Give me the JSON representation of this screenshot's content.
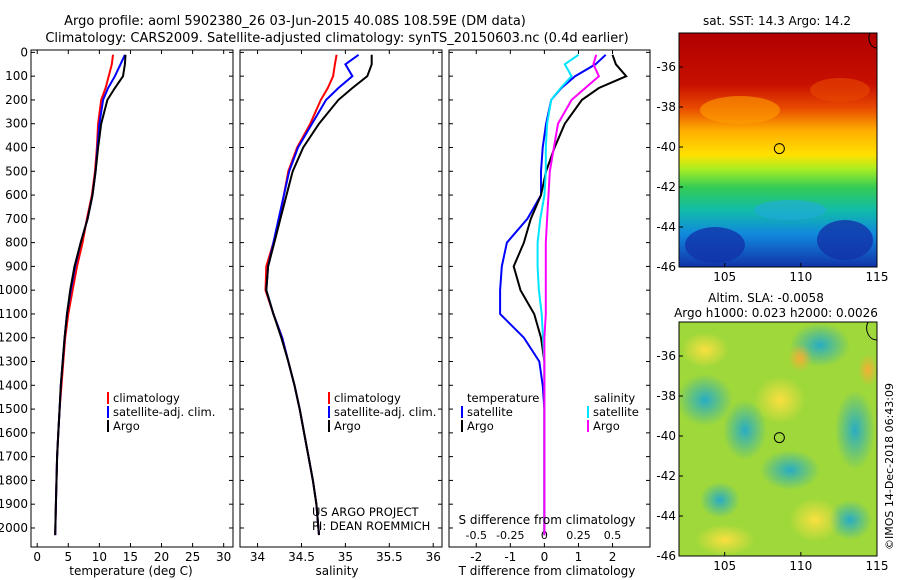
{
  "header": {
    "title_line1": "Argo profile: aoml 5902380_26 03-Jun-2015 40.08S 108.59E (DM data)",
    "title_line2": "Climatology: CARS2009. Satellite-adjusted climatology: synTS_20150603.nc (0.4d earlier)"
  },
  "colors": {
    "climatology": "#ff0000",
    "satellite": "#0000ff",
    "argo": "#000000",
    "sat_salinity": "#00e5ff",
    "argo_salinity_diff": "#ff00ff"
  },
  "depth_axis": {
    "ticks": [
      0,
      100,
      200,
      300,
      400,
      500,
      600,
      700,
      800,
      900,
      1000,
      1100,
      1200,
      1300,
      1400,
      1500,
      1600,
      1700,
      1800,
      1900,
      2000
    ],
    "range": [
      -10,
      2080
    ]
  },
  "chart_data": [
    {
      "type": "line",
      "xlabel": "temperature (deg C)",
      "xlim": [
        -1,
        31.5
      ],
      "xticks": [
        0,
        5,
        10,
        15,
        20,
        25,
        30
      ],
      "legend": [
        "climatology",
        "satellite-adj. clim.",
        "Argo"
      ],
      "series": [
        {
          "name": "climatology",
          "color": "#ff0000",
          "x": [
            12.2,
            12.0,
            11.5,
            11.0,
            10.3,
            9.8,
            9.6,
            9.3,
            8.8,
            8.0,
            7.3,
            6.4,
            5.7,
            5.0,
            4.5,
            4.2,
            3.9,
            3.6,
            3.4,
            3.2,
            3.1,
            3.0,
            2.9
          ],
          "y": [
            10,
            50,
            100,
            150,
            200,
            300,
            400,
            500,
            600,
            700,
            800,
            900,
            1000,
            1100,
            1200,
            1300,
            1400,
            1500,
            1600,
            1700,
            1800,
            1900,
            2030
          ]
        },
        {
          "name": "satellite-adj. clim.",
          "color": "#0000ff",
          "x": [
            14.1,
            13.4,
            12.5,
            11.4,
            10.6,
            10.0,
            9.7,
            9.4,
            8.9,
            8.1,
            7.0,
            6.1,
            5.4,
            4.8,
            4.4,
            4.1,
            3.8,
            3.6,
            3.4,
            3.2,
            3.1,
            3.0,
            2.9
          ],
          "y": [
            10,
            50,
            100,
            150,
            200,
            300,
            400,
            500,
            600,
            700,
            800,
            900,
            1000,
            1100,
            1200,
            1300,
            1400,
            1500,
            1600,
            1700,
            1800,
            1900,
            2030
          ]
        },
        {
          "name": "Argo",
          "color": "#000000",
          "x": [
            14.2,
            14.1,
            13.8,
            12.5,
            11.3,
            10.3,
            9.8,
            9.4,
            8.9,
            8.1,
            7.0,
            6.0,
            5.3,
            4.8,
            4.4,
            4.1,
            3.8,
            3.6,
            3.4,
            3.2,
            3.1,
            3.0,
            2.9
          ],
          "y": [
            10,
            50,
            100,
            150,
            200,
            300,
            400,
            500,
            600,
            700,
            800,
            900,
            1000,
            1100,
            1200,
            1300,
            1400,
            1500,
            1600,
            1700,
            1800,
            1900,
            2030
          ]
        }
      ]
    },
    {
      "type": "line",
      "xlabel": "salinity",
      "xlim": [
        33.8,
        36.1
      ],
      "xticks": [
        34,
        34.5,
        35,
        35.5,
        36
      ],
      "xticklabels": [
        "34",
        "34.5",
        "35",
        "35.5",
        "36"
      ],
      "legend": [
        "climatology",
        "satellite-adj. clim.",
        "Argo"
      ],
      "series": [
        {
          "name": "climatology",
          "color": "#ff0000",
          "x": [
            34.9,
            34.88,
            34.86,
            34.8,
            34.72,
            34.6,
            34.45,
            34.35,
            34.3,
            34.25,
            34.18,
            34.1,
            34.09,
            34.18,
            34.28,
            34.35,
            34.42,
            34.48,
            34.53,
            34.58,
            34.63,
            34.67,
            34.7
          ],
          "y": [
            10,
            50,
            100,
            150,
            200,
            300,
            400,
            500,
            600,
            700,
            800,
            900,
            1000,
            1100,
            1200,
            1300,
            1400,
            1500,
            1600,
            1700,
            1800,
            1900,
            2030
          ]
        },
        {
          "name": "satellite-adj. clim.",
          "color": "#0000ff",
          "x": [
            35.15,
            35.0,
            35.08,
            34.92,
            34.78,
            34.62,
            34.46,
            34.36,
            34.3,
            34.24,
            34.18,
            34.12,
            34.1,
            34.18,
            34.28,
            34.35,
            34.42,
            34.48,
            34.53,
            34.58,
            34.63,
            34.67,
            34.7
          ],
          "y": [
            10,
            50,
            100,
            150,
            200,
            300,
            400,
            500,
            600,
            700,
            800,
            900,
            1000,
            1100,
            1200,
            1300,
            1400,
            1500,
            1600,
            1700,
            1800,
            1900,
            2030
          ]
        },
        {
          "name": "Argo",
          "color": "#000000",
          "x": [
            35.3,
            35.3,
            35.25,
            35.08,
            34.92,
            34.7,
            34.52,
            34.4,
            34.33,
            34.26,
            34.19,
            34.12,
            34.1,
            34.18,
            34.27,
            34.35,
            34.42,
            34.48,
            34.53,
            34.58,
            34.63,
            34.67,
            34.7
          ],
          "y": [
            10,
            50,
            100,
            150,
            200,
            300,
            400,
            500,
            600,
            700,
            800,
            900,
            1000,
            1100,
            1200,
            1300,
            1400,
            1500,
            1600,
            1700,
            1800,
            1900,
            2030
          ]
        }
      ],
      "annotation": [
        "US ARGO PROJECT",
        "PI: DEAN ROEMMICH"
      ]
    },
    {
      "type": "line",
      "xlabel": "T difference from climatology",
      "xlabel_top": "S difference from climatology",
      "xlim": [
        -2.8,
        3.1
      ],
      "xticks": [
        -2,
        -1,
        0,
        1,
        2
      ],
      "sticks": [
        -0.5,
        -0.25,
        0,
        0.25,
        0.5
      ],
      "sticklabels": [
        "-0.5",
        "-0.25",
        "0",
        "0.25",
        "0.5"
      ],
      "legend_temperature": {
        "title": "temperature",
        "items": [
          "satellite",
          "Argo"
        ]
      },
      "legend_salinity": {
        "title": "salinity",
        "items": [
          "satellite",
          "Argo"
        ]
      },
      "series": [
        {
          "name": "T satellite",
          "color": "#0000ff",
          "x": [
            1.8,
            1.5,
            0.9,
            0.5,
            0.2,
            0.05,
            -0.05,
            -0.1,
            -0.1,
            -0.5,
            -1.1,
            -1.25,
            -1.3,
            -1.3,
            -0.6,
            -0.15,
            -0.05,
            0,
            0,
            0,
            0,
            0,
            0
          ],
          "y": [
            10,
            50,
            100,
            150,
            200,
            300,
            400,
            500,
            600,
            700,
            800,
            900,
            1000,
            1100,
            1200,
            1300,
            1400,
            1500,
            1600,
            1700,
            1800,
            1900,
            2030
          ]
        },
        {
          "name": "T Argo",
          "color": "#000000",
          "x": [
            2.0,
            2.1,
            2.4,
            1.6,
            1.1,
            0.6,
            0.3,
            0.05,
            -0.1,
            -0.4,
            -0.6,
            -0.9,
            -0.7,
            -0.3,
            -0.1,
            0,
            0,
            0,
            0,
            0,
            0,
            0,
            0
          ],
          "y": [
            10,
            50,
            100,
            150,
            200,
            300,
            400,
            500,
            600,
            700,
            800,
            900,
            1000,
            1100,
            1200,
            1300,
            1400,
            1500,
            1600,
            1700,
            1800,
            1900,
            2030
          ]
        },
        {
          "name": "S satellite",
          "color": "#00e5ff",
          "x": [
            0.25,
            0.15,
            0.2,
            0.12,
            0.05,
            0.02,
            0.01,
            0.01,
            0,
            -0.03,
            -0.05,
            -0.05,
            -0.04,
            -0.02,
            -0.01,
            0,
            0,
            0,
            0,
            0,
            0,
            0,
            0
          ],
          "y": [
            10,
            50,
            100,
            150,
            200,
            300,
            400,
            500,
            600,
            700,
            800,
            900,
            1000,
            1100,
            1200,
            1300,
            1400,
            1500,
            1600,
            1700,
            1800,
            1900,
            2030
          ]
        },
        {
          "name": "S Argo",
          "color": "#ff00ff",
          "x": [
            0.38,
            0.36,
            0.4,
            0.3,
            0.2,
            0.1,
            0.07,
            0.04,
            0.03,
            0.02,
            0.01,
            0.01,
            0.01,
            0.01,
            0,
            0,
            0,
            0,
            0,
            0,
            0,
            0,
            0
          ],
          "y": [
            10,
            50,
            100,
            150,
            200,
            300,
            400,
            500,
            600,
            700,
            800,
            900,
            1000,
            1100,
            1200,
            1300,
            1400,
            1500,
            1600,
            1700,
            1800,
            1900,
            2030
          ]
        }
      ]
    },
    {
      "type": "heatmap",
      "title": "sat. SST: 14.3 Argo: 14.2",
      "xticks": [
        105,
        110,
        115
      ],
      "yticks": [
        -36,
        -38,
        -40,
        -42,
        -44,
        -46
      ],
      "xlim": [
        102,
        115
      ],
      "ylim": [
        -46,
        -34.3
      ],
      "argo_position": {
        "lon": 108.59,
        "lat": -40.08
      }
    },
    {
      "type": "heatmap",
      "title_line1": "Altim. SLA: -0.0058",
      "title_line2": "Argo h1000: 0.023 h2000: 0.0026",
      "xticks": [
        105,
        110,
        115
      ],
      "yticks": [
        -36,
        -38,
        -40,
        -42,
        -44,
        -46
      ],
      "xlim": [
        102,
        115
      ],
      "ylim": [
        -46,
        -34.3
      ],
      "argo_position": {
        "lon": 108.59,
        "lat": -40.08
      }
    }
  ],
  "footer_credit": "©IMOS 14-Dec-2018 06:43:09"
}
